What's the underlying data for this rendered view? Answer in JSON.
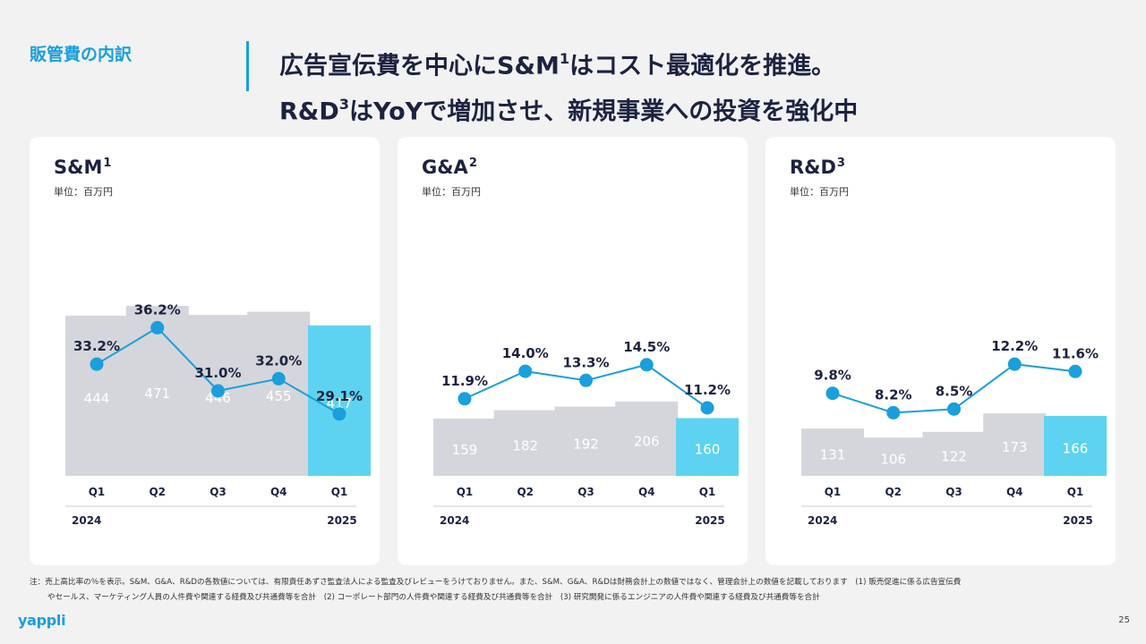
{
  "header": {
    "section": "販管費の内訳",
    "headline_line1": "広告宣伝費を中心にS&M",
    "headline_line1_sup": "1",
    "headline_line1_rest": "はコスト最適化を推進。",
    "headline_line2": "R&D",
    "headline_line2_sup": "3",
    "headline_line2_rest": "はYoYで増加させ、新規事業への投資を強化中"
  },
  "chart_data": [
    {
      "type": "bar",
      "title": "S&M",
      "title_sup": "1",
      "unit": "単位：百万円",
      "categories": [
        "Q1",
        "Q2",
        "Q3",
        "Q4",
        "Q1"
      ],
      "years": [
        "2024",
        "2025"
      ],
      "values": [
        444,
        471,
        446,
        455,
        417
      ],
      "line_labels": [
        "33.2%",
        "36.2%",
        "31.0%",
        "32.0%",
        "29.1%"
      ],
      "line_values": [
        33.2,
        36.2,
        31.0,
        32.0,
        29.1
      ],
      "ylim": [
        0,
        471
      ],
      "line_ylim": [
        24,
        38
      ],
      "highlight_last": true,
      "colors": {
        "bar": "#d5d6db",
        "highlight": "#5dd3f1",
        "line": "#1a9fdc"
      }
    },
    {
      "type": "bar",
      "title": "G&A",
      "title_sup": "2",
      "unit": "単位：百万円",
      "categories": [
        "Q1",
        "Q2",
        "Q3",
        "Q4",
        "Q1"
      ],
      "years": [
        "2024",
        "2025"
      ],
      "values": [
        159,
        182,
        192,
        206,
        160
      ],
      "line_labels": [
        "11.9%",
        "14.0%",
        "13.3%",
        "14.5%",
        "11.2%"
      ],
      "line_values": [
        11.9,
        14.0,
        13.3,
        14.5,
        11.2
      ],
      "ylim": [
        0,
        471
      ],
      "line_ylim": [
        6,
        19
      ],
      "highlight_last": true,
      "colors": {
        "bar": "#d5d6db",
        "highlight": "#5dd3f1",
        "line": "#1a9fdc"
      }
    },
    {
      "type": "bar",
      "title": "R&D",
      "title_sup": "3",
      "unit": "単位：百万円",
      "categories": [
        "Q1",
        "Q2",
        "Q3",
        "Q4",
        "Q1"
      ],
      "years": [
        "2024",
        "2025"
      ],
      "values": [
        131,
        106,
        122,
        173,
        166
      ],
      "line_labels": [
        "9.8%",
        "8.2%",
        "8.5%",
        "12.2%",
        "11.6%"
      ],
      "line_values": [
        9.8,
        8.2,
        8.5,
        12.2,
        11.6
      ],
      "ylim": [
        0,
        471
      ],
      "line_ylim": [
        3,
        17
      ],
      "highlight_last": true,
      "colors": {
        "bar": "#d5d6db",
        "highlight": "#5dd3f1",
        "line": "#1a9fdc"
      }
    }
  ],
  "footnote": {
    "line1": "注：売上高比率の％を表示。S&M、G&A、R&Dの各数値については、有限責任あずさ監査法人による監査及びレビューをうけておりません。また、S&M、G&A、R&Dは財務会計上の数値ではなく、管理会計上の数値を記載しております　(1) 販売促進に係る広告宣伝費",
    "line2": "やセールス、マーケティング人員の人件費や関連する経費及び共通費等を合計　(2) コーポレート部門の人件費や関連する経費及び共通費等を合計　(3) 研究開発に係るエンジニアの人件費や関連する経費及び共通費等を合計"
  },
  "footer": {
    "logo": "yappli",
    "page": "25"
  }
}
